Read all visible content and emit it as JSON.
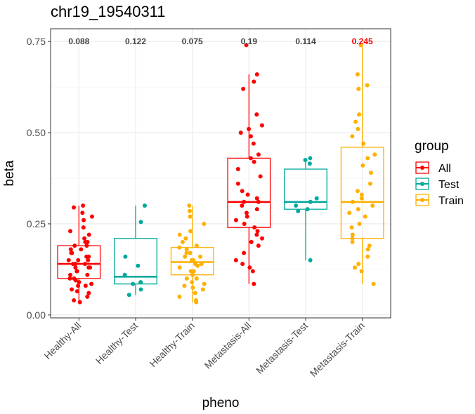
{
  "chart_data": {
    "type": "boxplot",
    "title": "chr19_19540311",
    "xlabel": "pheno",
    "ylabel": "beta",
    "ylim": [
      -0.008,
      0.785
    ],
    "yticks": [
      0.0,
      0.25,
      0.5,
      0.75
    ],
    "ytick_labels": [
      "0.00",
      "0.25",
      "0.50",
      "0.75"
    ],
    "grid": true,
    "legend": {
      "title": "group",
      "position": "right",
      "entries": [
        {
          "name": "All",
          "color": "#ff0000"
        },
        {
          "name": "Test",
          "color": "#00a99d"
        },
        {
          "name": "Train",
          "color": "#ffb000"
        }
      ]
    },
    "categories": [
      "Healthy-All",
      "Healthy-Test",
      "Healthy-Train",
      "Metastasis-All",
      "Metastasis-Test",
      "Metastasis-Train"
    ],
    "annotations": [
      {
        "category": "Healthy-All",
        "text": "0.088",
        "color": "#444444"
      },
      {
        "category": "Healthy-Test",
        "text": "0.122",
        "color": "#444444"
      },
      {
        "category": "Healthy-Train",
        "text": "0.075",
        "color": "#444444"
      },
      {
        "category": "Metastasis-All",
        "text": "0.19",
        "color": "#444444"
      },
      {
        "category": "Metastasis-Test",
        "text": "0.114",
        "color": "#444444"
      },
      {
        "category": "Metastasis-Train",
        "text": "0.245",
        "color": "#ff0000"
      }
    ],
    "boxes": [
      {
        "category": "Healthy-All",
        "group": "All",
        "whisker_low": 0.035,
        "q1": 0.1,
        "median": 0.14,
        "q3": 0.19,
        "whisker_high": 0.3,
        "points": [
          0.3,
          0.295,
          0.28,
          0.27,
          0.26,
          0.24,
          0.23,
          0.22,
          0.21,
          0.2,
          0.2,
          0.19,
          0.19,
          0.18,
          0.18,
          0.17,
          0.17,
          0.16,
          0.16,
          0.15,
          0.15,
          0.15,
          0.14,
          0.14,
          0.14,
          0.13,
          0.13,
          0.13,
          0.12,
          0.12,
          0.11,
          0.11,
          0.1,
          0.1,
          0.095,
          0.09,
          0.085,
          0.08,
          0.08,
          0.07,
          0.065,
          0.06,
          0.05,
          0.04,
          0.035
        ]
      },
      {
        "category": "Healthy-Test",
        "group": "Test",
        "whisker_low": 0.055,
        "q1": 0.085,
        "median": 0.105,
        "q3": 0.21,
        "whisker_high": 0.3,
        "points": [
          0.3,
          0.255,
          0.16,
          0.135,
          0.11,
          0.09,
          0.085,
          0.07,
          0.055
        ]
      },
      {
        "category": "Healthy-Train",
        "group": "Train",
        "whisker_low": 0.035,
        "q1": 0.11,
        "median": 0.145,
        "q3": 0.185,
        "whisker_high": 0.3,
        "points": [
          0.3,
          0.285,
          0.27,
          0.25,
          0.23,
          0.22,
          0.21,
          0.2,
          0.19,
          0.185,
          0.18,
          0.17,
          0.17,
          0.16,
          0.16,
          0.15,
          0.15,
          0.14,
          0.14,
          0.135,
          0.13,
          0.12,
          0.12,
          0.11,
          0.1,
          0.1,
          0.09,
          0.085,
          0.08,
          0.075,
          0.07,
          0.06,
          0.05,
          0.04,
          0.035
        ]
      },
      {
        "category": "Metastasis-All",
        "group": "All",
        "whisker_low": 0.085,
        "q1": 0.24,
        "median": 0.31,
        "q3": 0.43,
        "whisker_high": 0.66,
        "points": [
          0.74,
          0.66,
          0.64,
          0.62,
          0.55,
          0.52,
          0.51,
          0.5,
          0.49,
          0.47,
          0.44,
          0.43,
          0.42,
          0.4,
          0.38,
          0.36,
          0.34,
          0.33,
          0.32,
          0.31,
          0.31,
          0.3,
          0.29,
          0.28,
          0.27,
          0.26,
          0.25,
          0.24,
          0.23,
          0.22,
          0.21,
          0.2,
          0.19,
          0.17,
          0.15,
          0.14,
          0.13,
          0.12,
          0.085
        ]
      },
      {
        "category": "Metastasis-Test",
        "group": "Test",
        "whisker_low": 0.15,
        "q1": 0.29,
        "median": 0.31,
        "q3": 0.4,
        "whisker_high": 0.43,
        "points": [
          0.43,
          0.425,
          0.415,
          0.32,
          0.31,
          0.3,
          0.29,
          0.285,
          0.15
        ]
      },
      {
        "category": "Metastasis-Train",
        "group": "Train",
        "whisker_low": 0.085,
        "q1": 0.21,
        "median": 0.31,
        "q3": 0.46,
        "whisker_high": 0.74,
        "points": [
          0.74,
          0.66,
          0.63,
          0.62,
          0.55,
          0.53,
          0.51,
          0.49,
          0.47,
          0.44,
          0.43,
          0.41,
          0.39,
          0.36,
          0.34,
          0.33,
          0.32,
          0.31,
          0.3,
          0.29,
          0.28,
          0.27,
          0.25,
          0.24,
          0.22,
          0.21,
          0.2,
          0.19,
          0.18,
          0.16,
          0.14,
          0.13,
          0.12,
          0.085
        ]
      }
    ]
  }
}
